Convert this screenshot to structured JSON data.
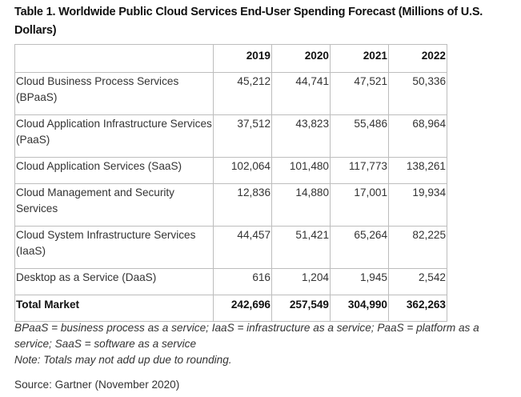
{
  "title": "Table 1. Worldwide Public Cloud Services End-User Spending Forecast (Millions of U.S. Dollars)",
  "table": {
    "header": [
      "",
      "2019",
      "2020",
      "2021",
      "2022"
    ],
    "rows": [
      {
        "label": "Cloud Business Process Services (BPaaS)",
        "values": [
          "45,212",
          "44,741",
          "47,521",
          "50,336"
        ]
      },
      {
        "label": "Cloud Application Infrastructure Services (PaaS)",
        "values": [
          "37,512",
          "43,823",
          "55,486",
          "68,964"
        ]
      },
      {
        "label": "Cloud Application Services (SaaS)",
        "values": [
          "102,064",
          "101,480",
          "117,773",
          "138,261"
        ]
      },
      {
        "label": "Cloud Management and Security Services",
        "values": [
          "12,836",
          "14,880",
          "17,001",
          "19,934"
        ]
      },
      {
        "label": "Cloud System Infrastructure Services (IaaS)",
        "values": [
          "44,457",
          "51,421",
          "65,264",
          "82,225"
        ]
      },
      {
        "label": "Desktop as a Service (DaaS)",
        "values": [
          "616",
          "1,204",
          "1,945",
          "2,542"
        ]
      }
    ],
    "total": {
      "label": "Total Market",
      "values": [
        "242,696",
        "257,549",
        "304,990",
        "362,263"
      ]
    }
  },
  "footnotes": {
    "abbreviations": "BPaaS = business process as a service; IaaS = infrastructure as a service; PaaS = platform as a service; SaaS = software as a service",
    "note": "Note: Totals may not add up due to rounding.",
    "source": "Source: Gartner (November 2020)"
  }
}
